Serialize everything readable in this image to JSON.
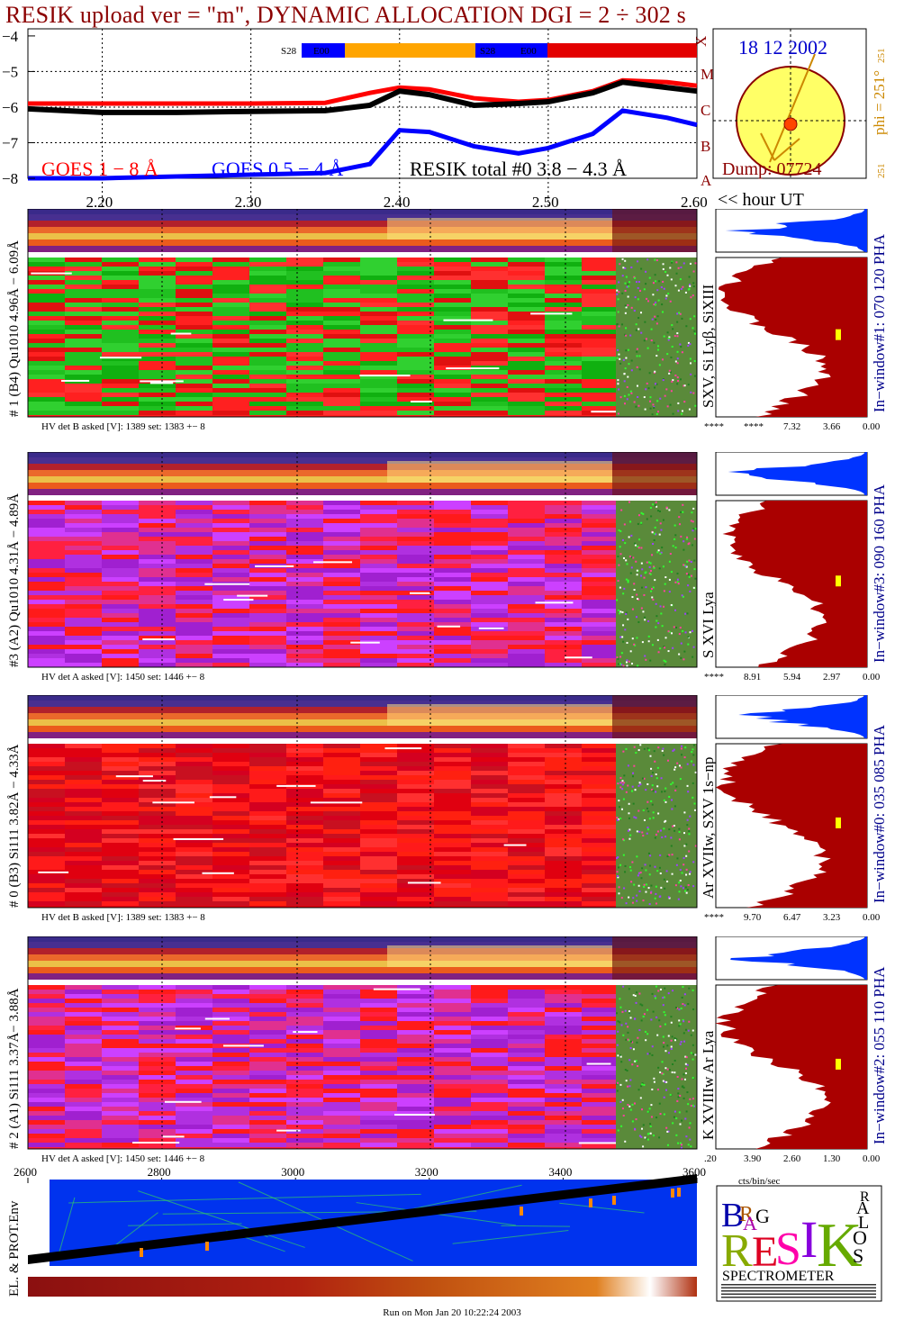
{
  "title": "RESIK upload ver = \"m\", DYNAMIC ALLOCATION  DGI =   2 ÷ 302 s",
  "lightcurve": {
    "y_ticks": [
      "−4",
      "−5",
      "−6",
      "−7",
      "−8"
    ],
    "x_ticks": [
      "2.20",
      "2.30",
      "2.40",
      "2.50",
      "2.60"
    ],
    "hour_label": "<< hour UT",
    "class_letters": [
      "X",
      "M",
      "C",
      "B",
      "A"
    ],
    "legend_goes18": "GOES 1 − 8 Å",
    "legend_goes054": "GOES 0.5 − 4 Å",
    "legend_resik": "RESIK total #0  3.8 − 4.3 Å",
    "mode_bar_labels": [
      "S28",
      "E00",
      "S28",
      "E00"
    ],
    "colors": {
      "goes18": "#ff0000",
      "goes054": "#0000ff",
      "resik": "#000000"
    }
  },
  "sun": {
    "date": "18 12 2002",
    "phi": "phi = 251°",
    "phi_small_top": "251",
    "phi_small_bottom": "251",
    "dump": "Dump: 07724"
  },
  "panels": [
    {
      "left_label": "# 1 (B4) Qu1010 4.96Å − 6.09Å",
      "hv": "HV det B asked [V]:  1389 set:  1383  +−    8",
      "line_label": "SXV, Si Lyβ, SiXIII",
      "window": "In−window#1:  070 120 PHA",
      "spec_ticks": [
        "****",
        "****",
        "7.32",
        "3.66",
        "0.00"
      ],
      "palette": "green"
    },
    {
      "left_label": "#3 (A2) Qu1010  4.31Å − 4.89Å",
      "hv": "HV det A asked [V]:  1450 set:  1446  +−    8",
      "line_label": "S XVI Lya",
      "window": "In−window#3:  090 160 PHA",
      "spec_ticks": [
        "****",
        "8.91",
        "5.94",
        "2.97",
        "0.00"
      ],
      "palette": "violet"
    },
    {
      "left_label": "# 0 (B3) Si111  3.82Å − 4.33Å",
      "hv": "HV det B asked [V]:  1389 set:  1383  +−    8",
      "line_label": "Ar XVIIw, SXV 1s−np",
      "window": "In−window#0:  035 085 PHA",
      "spec_ticks": [
        "****",
        "9.70",
        "6.47",
        "3.23",
        "0.00"
      ],
      "palette": "red"
    },
    {
      "left_label": "# 2 (A1) Si111  3.37Å−  3.88Å",
      "hv": "HV det A asked [V]:  1450 set:  1446  +−    8",
      "line_label": "K XVIIIw  Ar Lya",
      "window": "In−window#2:  055 110 PHA",
      "spec_ticks": [
        ".20",
        "3.90",
        "2.60",
        "1.30",
        "0.00"
      ],
      "palette": "violet"
    }
  ],
  "bottom_axis": [
    "2600",
    "2800",
    "3000",
    "3200",
    "3400",
    "3600"
  ],
  "cts_label": "cts/bin/sec",
  "env_label": "EL. & PROT.Env",
  "logo": {
    "letters": [
      "B",
      "R",
      "A",
      "G",
      "R",
      "E",
      "S",
      "I",
      "K",
      "S",
      "O",
      "L",
      "A",
      "R"
    ],
    "spectrometer": "SPECTROMETER"
  },
  "footer": "Run on Mon Jan 20 10:22:24 2003",
  "chart_data": {
    "type": "line",
    "title": "RESIK upload ver = \"m\", DYNAMIC ALLOCATION  DGI =   2 ÷ 302 s",
    "xlabel": "<< hour UT",
    "ylabel": "",
    "x": [
      2.15,
      2.2,
      2.25,
      2.3,
      2.35,
      2.38,
      2.4,
      2.42,
      2.45,
      2.48,
      2.5,
      2.53,
      2.55,
      2.58,
      2.6
    ],
    "xlim": [
      2.15,
      2.6
    ],
    "ylim": [
      -8,
      -3.8
    ],
    "series": [
      {
        "name": "GOES 1 − 8 Å",
        "values": [
          -5.9,
          -5.9,
          -5.9,
          -5.9,
          -5.88,
          -5.6,
          -5.45,
          -5.5,
          -5.75,
          -5.85,
          -5.8,
          -5.55,
          -5.25,
          -5.3,
          -5.4
        ]
      },
      {
        "name": "GOES 0.5 − 4 Å",
        "values": [
          -8.0,
          -8.0,
          -7.95,
          -7.9,
          -7.85,
          -7.6,
          -6.65,
          -6.7,
          -7.1,
          -7.3,
          -7.15,
          -6.75,
          -6.1,
          -6.3,
          -6.5
        ]
      },
      {
        "name": "RESIK total #0  3.8 − 4.3 Å",
        "values": [
          -6.05,
          -6.15,
          -6.15,
          -6.12,
          -6.1,
          -5.95,
          -5.55,
          -5.65,
          -5.95,
          -5.9,
          -5.85,
          -5.6,
          -5.3,
          -5.45,
          -5.55
        ]
      }
    ]
  }
}
